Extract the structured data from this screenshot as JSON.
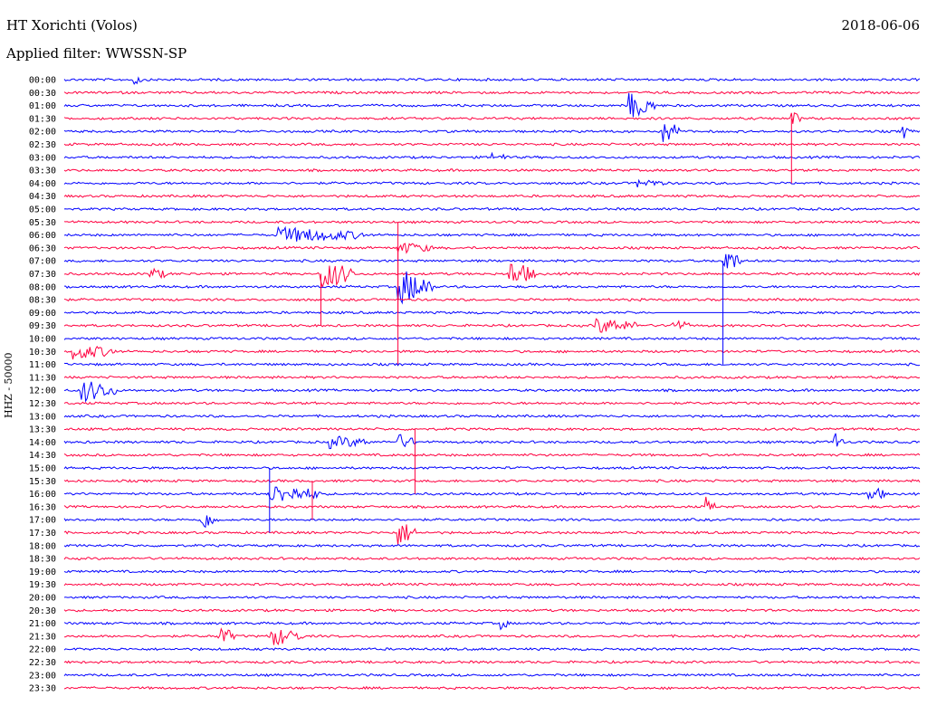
{
  "header": {
    "station": "HT Xorichti (Volos)",
    "date": "2018-06-06",
    "filter": "Applied filter: WWSSN-SP",
    "channel": "HHZ - 50000"
  },
  "colors": {
    "even_row": "#0000ff",
    "odd_row": "#ff0040"
  },
  "chart_data": {
    "type": "line",
    "subtype": "helicorder",
    "title": "HT Xorichti (Volos)",
    "ylabel": "HHZ - 50000",
    "rows": [
      "00:00",
      "00:30",
      "01:00",
      "01:30",
      "02:00",
      "02:30",
      "03:00",
      "03:30",
      "04:00",
      "04:30",
      "05:00",
      "05:30",
      "06:00",
      "06:30",
      "07:00",
      "07:30",
      "08:00",
      "08:30",
      "09:00",
      "09:30",
      "10:00",
      "10:30",
      "11:00",
      "11:30",
      "12:00",
      "12:30",
      "13:00",
      "13:30",
      "14:00",
      "14:30",
      "15:00",
      "15:30",
      "16:00",
      "16:30",
      "17:00",
      "17:30",
      "18:00",
      "18:30",
      "19:00",
      "19:30",
      "20:00",
      "20:30",
      "21:00",
      "21:30",
      "22:00",
      "22:30",
      "23:00",
      "23:30"
    ],
    "events": [
      {
        "row": 0,
        "pos": 0.08,
        "amp": 6,
        "len": 0.01
      },
      {
        "row": 2,
        "pos": 0.66,
        "amp": 14,
        "len": 0.03
      },
      {
        "row": 3,
        "pos": 0.85,
        "amp": 8,
        "len": 0.01
      },
      {
        "row": 4,
        "pos": 0.7,
        "amp": 14,
        "len": 0.02
      },
      {
        "row": 4,
        "pos": 0.98,
        "amp": 8,
        "len": 0.01
      },
      {
        "row": 6,
        "pos": 0.5,
        "amp": 4,
        "len": 0.02
      },
      {
        "row": 8,
        "pos": 0.67,
        "amp": 4,
        "len": 0.03
      },
      {
        "row": 12,
        "pos": 0.25,
        "amp": 8,
        "len": 0.1
      },
      {
        "row": 13,
        "pos": 0.39,
        "amp": 6,
        "len": 0.04
      },
      {
        "row": 14,
        "pos": 0.77,
        "amp": 14,
        "len": 0.02
      },
      {
        "row": 15,
        "pos": 0.1,
        "amp": 6,
        "len": 0.02
      },
      {
        "row": 15,
        "pos": 0.3,
        "amp": 16,
        "len": 0.04
      },
      {
        "row": 15,
        "pos": 0.52,
        "amp": 14,
        "len": 0.03
      },
      {
        "row": 16,
        "pos": 0.39,
        "amp": 20,
        "len": 0.04
      },
      {
        "row": 19,
        "pos": 0.62,
        "amp": 8,
        "len": 0.05
      },
      {
        "row": 19,
        "pos": 0.71,
        "amp": 6,
        "len": 0.02
      },
      {
        "row": 21,
        "pos": 0.01,
        "amp": 8,
        "len": 0.05
      },
      {
        "row": 24,
        "pos": 0.02,
        "amp": 12,
        "len": 0.04
      },
      {
        "row": 28,
        "pos": 0.39,
        "amp": 8,
        "len": 0.02
      },
      {
        "row": 28,
        "pos": 0.31,
        "amp": 6,
        "len": 0.05
      },
      {
        "row": 28,
        "pos": 0.9,
        "amp": 12,
        "len": 0.01
      },
      {
        "row": 32,
        "pos": 0.24,
        "amp": 10,
        "len": 0.06
      },
      {
        "row": 32,
        "pos": 0.94,
        "amp": 8,
        "len": 0.02
      },
      {
        "row": 33,
        "pos": 0.75,
        "amp": 10,
        "len": 0.01
      },
      {
        "row": 34,
        "pos": 0.16,
        "amp": 10,
        "len": 0.02
      },
      {
        "row": 35,
        "pos": 0.39,
        "amp": 14,
        "len": 0.02
      },
      {
        "row": 42,
        "pos": 0.51,
        "amp": 6,
        "len": 0.01
      },
      {
        "row": 43,
        "pos": 0.18,
        "amp": 10,
        "len": 0.02
      },
      {
        "row": 43,
        "pos": 0.24,
        "amp": 10,
        "len": 0.04
      }
    ],
    "gaps": [
      {
        "row": 18,
        "start": 0.69,
        "end": 0.8
      }
    ],
    "spikes": [
      {
        "row": 3,
        "pos": 0.85,
        "to_row": 8
      },
      {
        "row": 11,
        "pos": 0.39,
        "to_row": 18
      },
      {
        "row": 13,
        "pos": 0.39,
        "to_row": 22
      },
      {
        "row": 14,
        "pos": 0.77,
        "to_row": 22
      },
      {
        "row": 15,
        "pos": 0.3,
        "to_row": 19
      },
      {
        "row": 27,
        "pos": 0.41,
        "to_row": 32
      },
      {
        "row": 30,
        "pos": 0.24,
        "to_row": 35
      },
      {
        "row": 31,
        "pos": 0.29,
        "to_row": 34
      }
    ]
  }
}
